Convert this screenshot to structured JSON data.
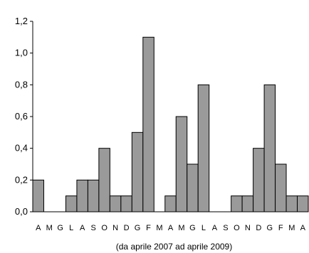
{
  "chart_data": {
    "type": "bar",
    "title": "",
    "xlabel": "(da aprile 2007 ad aprile 2009)",
    "ylabel": "",
    "ylim": [
      0,
      1.2
    ],
    "yticks": [
      0.0,
      0.2,
      0.4,
      0.6,
      0.8,
      1.0,
      1.2
    ],
    "ytick_labels": [
      "0,0",
      "0,2",
      "0,4",
      "0,6",
      "0,8",
      "1,0",
      "1,2"
    ],
    "grid": false,
    "legend": "none",
    "bar_color": "#9a9a9a",
    "bar_edge_color": "#000000",
    "categories": [
      "A",
      "M",
      "G",
      "L",
      "A",
      "S",
      "O",
      "N",
      "D",
      "G",
      "F",
      "M",
      "A",
      "M",
      "G",
      "L",
      "A",
      "S",
      "O",
      "N",
      "D",
      "G",
      "F",
      "M",
      "A"
    ],
    "values": [
      0.2,
      0.0,
      0.0,
      0.1,
      0.2,
      0.2,
      0.4,
      0.1,
      0.1,
      0.5,
      1.1,
      0.0,
      0.1,
      0.6,
      0.3,
      0.8,
      0.0,
      0.0,
      0.1,
      0.1,
      0.4,
      0.8,
      0.3,
      0.1,
      0.1
    ]
  }
}
